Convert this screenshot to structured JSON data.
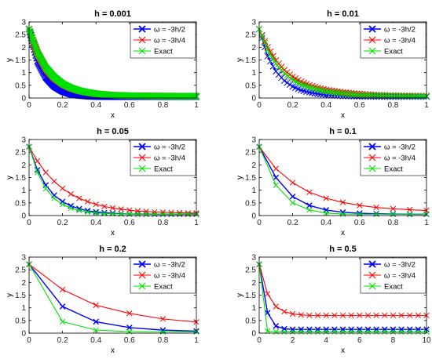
{
  "chart_data": [
    {
      "type": "line",
      "title": "h = 0.001",
      "xlabel": "x",
      "ylabel": "y",
      "xlim": [
        0,
        1
      ],
      "ylim": [
        0,
        3
      ],
      "xticks": [
        0,
        0.2,
        0.4,
        0.6,
        0.8,
        1
      ],
      "xtick_labels": [
        "0",
        "0.2",
        "0.4",
        "0.6",
        "0.8",
        "1"
      ],
      "yticks": [
        0,
        0.5,
        1,
        1.5,
        2,
        2.5,
        3
      ],
      "ytick_labels": [
        "0",
        "0.5",
        "1",
        "1.5",
        "2",
        "2.5",
        "3"
      ],
      "legend_position": "top-right",
      "dense": true,
      "series": [
        {
          "name": "ω = -3h/2",
          "color": "#0000ff",
          "marker": "x",
          "x": [
            0,
            0.05,
            0.1,
            0.15,
            0.2,
            0.25,
            0.3,
            0.35,
            0.4,
            0.5,
            0.6,
            0.7,
            0.8,
            0.9,
            1
          ],
          "y": [
            2.718,
            1.45,
            0.82,
            0.46,
            0.26,
            0.15,
            0.1,
            0.07,
            0.055,
            0.05,
            0.05,
            0.05,
            0.05,
            0.05,
            0.05
          ]
        },
        {
          "name": "ω = -3h/4",
          "color": "#ff0000",
          "marker": "x",
          "x": [
            0,
            0.05,
            0.1,
            0.15,
            0.2,
            0.25,
            0.3,
            0.35,
            0.4,
            0.5,
            0.6,
            0.7,
            0.8,
            0.9,
            1
          ],
          "y": [
            2.718,
            1.75,
            1.15,
            0.78,
            0.54,
            0.38,
            0.28,
            0.21,
            0.16,
            0.11,
            0.09,
            0.08,
            0.075,
            0.07,
            0.07
          ]
        },
        {
          "name": "Exact",
          "color": "#00e000",
          "marker": "x",
          "x": [
            0,
            0.05,
            0.1,
            0.15,
            0.2,
            0.25,
            0.3,
            0.35,
            0.4,
            0.5,
            0.6,
            0.7,
            0.8,
            0.9,
            1
          ],
          "y": [
            2.718,
            1.8,
            1.2,
            0.82,
            0.56,
            0.4,
            0.29,
            0.22,
            0.17,
            0.11,
            0.09,
            0.08,
            0.075,
            0.07,
            0.07
          ]
        }
      ]
    },
    {
      "type": "line",
      "title": "h = 0.01",
      "xlabel": "x",
      "ylabel": "y",
      "xlim": [
        0,
        1
      ],
      "ylim": [
        0,
        3
      ],
      "xticks": [
        0,
        0.2,
        0.4,
        0.6,
        0.8,
        1
      ],
      "xtick_labels": [
        "0",
        "0.2",
        "0.4",
        "0.6",
        "0.8",
        "1"
      ],
      "yticks": [
        0,
        0.5,
        1,
        1.5,
        2,
        2.5,
        3
      ],
      "ytick_labels": [
        "0",
        "0.5",
        "1",
        "1.5",
        "2",
        "2.5",
        "3"
      ],
      "legend_position": "top-right",
      "dense": true,
      "series": [
        {
          "name": "ω = -3h/2",
          "color": "#0000ff",
          "marker": "x",
          "x": [
            0,
            0.05,
            0.1,
            0.15,
            0.2,
            0.25,
            0.3,
            0.35,
            0.4,
            0.5,
            0.6,
            0.7,
            0.8,
            0.9,
            1
          ],
          "y": [
            2.718,
            1.65,
            1.05,
            0.68,
            0.45,
            0.31,
            0.22,
            0.16,
            0.12,
            0.08,
            0.06,
            0.055,
            0.05,
            0.05,
            0.05
          ]
        },
        {
          "name": "ω = -3h/4",
          "color": "#ff0000",
          "marker": "x",
          "x": [
            0,
            0.05,
            0.1,
            0.15,
            0.2,
            0.25,
            0.3,
            0.35,
            0.4,
            0.5,
            0.6,
            0.7,
            0.8,
            0.9,
            1
          ],
          "y": [
            2.718,
            2.0,
            1.48,
            1.1,
            0.83,
            0.64,
            0.5,
            0.4,
            0.32,
            0.22,
            0.16,
            0.12,
            0.1,
            0.09,
            0.08
          ]
        },
        {
          "name": "Exact",
          "color": "#00e000",
          "marker": "x",
          "x": [
            0,
            0.05,
            0.1,
            0.15,
            0.2,
            0.25,
            0.3,
            0.35,
            0.4,
            0.5,
            0.6,
            0.7,
            0.8,
            0.9,
            1
          ],
          "y": [
            2.718,
            1.9,
            1.35,
            0.98,
            0.72,
            0.54,
            0.42,
            0.33,
            0.26,
            0.17,
            0.12,
            0.1,
            0.085,
            0.075,
            0.07
          ]
        }
      ]
    },
    {
      "type": "line",
      "title": "h = 0.05",
      "xlabel": "x",
      "ylabel": "y",
      "xlim": [
        0,
        1
      ],
      "ylim": [
        0,
        3
      ],
      "xticks": [
        0,
        0.2,
        0.4,
        0.6,
        0.8,
        1
      ],
      "xtick_labels": [
        "0",
        "0.2",
        "0.4",
        "0.6",
        "0.8",
        "1"
      ],
      "yticks": [
        0,
        0.5,
        1,
        1.5,
        2,
        2.5,
        3
      ],
      "ytick_labels": [
        "0",
        "0.5",
        "1",
        "1.5",
        "2",
        "2.5",
        "3"
      ],
      "legend_position": "top-right",
      "dense": false,
      "series": [
        {
          "name": "ω = -3h/2",
          "color": "#0000ff",
          "marker": "x",
          "x": [
            0,
            0.05,
            0.1,
            0.15,
            0.2,
            0.25,
            0.3,
            0.35,
            0.4,
            0.45,
            0.5,
            0.55,
            0.6,
            0.65,
            0.7,
            0.75,
            0.8,
            0.85,
            0.9,
            0.95,
            1
          ],
          "y": [
            2.718,
            1.8,
            1.2,
            0.8,
            0.55,
            0.38,
            0.27,
            0.19,
            0.14,
            0.11,
            0.09,
            0.07,
            0.06,
            0.06,
            0.055,
            0.05,
            0.05,
            0.05,
            0.05,
            0.05,
            0.05
          ]
        },
        {
          "name": "ω = -3h/4",
          "color": "#ff0000",
          "marker": "x",
          "x": [
            0,
            0.05,
            0.1,
            0.15,
            0.2,
            0.25,
            0.3,
            0.35,
            0.4,
            0.45,
            0.5,
            0.55,
            0.6,
            0.65,
            0.7,
            0.75,
            0.8,
            0.85,
            0.9,
            0.95,
            1
          ],
          "y": [
            2.718,
            2.15,
            1.7,
            1.35,
            1.07,
            0.85,
            0.68,
            0.55,
            0.44,
            0.36,
            0.3,
            0.25,
            0.21,
            0.18,
            0.16,
            0.14,
            0.13,
            0.12,
            0.11,
            0.1,
            0.1
          ]
        },
        {
          "name": "Exact",
          "color": "#00e000",
          "marker": "x",
          "x": [
            0,
            0.05,
            0.1,
            0.15,
            0.2,
            0.25,
            0.3,
            0.35,
            0.4,
            0.45,
            0.5,
            0.55,
            0.6,
            0.65,
            0.7,
            0.75,
            0.8,
            0.85,
            0.9,
            0.95,
            1
          ],
          "y": [
            2.718,
            1.7,
            1.06,
            0.68,
            0.44,
            0.29,
            0.2,
            0.14,
            0.1,
            0.08,
            0.07,
            0.06,
            0.06,
            0.055,
            0.05,
            0.05,
            0.05,
            0.05,
            0.05,
            0.05,
            0.05
          ]
        }
      ]
    },
    {
      "type": "line",
      "title": "h = 0.1",
      "xlabel": "x",
      "ylabel": "y",
      "xlim": [
        0,
        1
      ],
      "ylim": [
        0,
        3
      ],
      "xticks": [
        0,
        0.2,
        0.4,
        0.6,
        0.8,
        1
      ],
      "xtick_labels": [
        "0",
        "0.2",
        "0.4",
        "0.6",
        "0.8",
        "1"
      ],
      "yticks": [
        0,
        0.5,
        1,
        1.5,
        2,
        2.5,
        3
      ],
      "ytick_labels": [
        "0",
        "0.5",
        "1",
        "1.5",
        "2",
        "2.5",
        "3"
      ],
      "legend_position": "top-right",
      "dense": false,
      "series": [
        {
          "name": "ω = -3h/2",
          "color": "#0000ff",
          "marker": "x",
          "x": [
            0,
            0.1,
            0.2,
            0.3,
            0.4,
            0.5,
            0.6,
            0.7,
            0.8,
            0.9,
            1
          ],
          "y": [
            2.718,
            1.5,
            0.75,
            0.4,
            0.22,
            0.13,
            0.09,
            0.07,
            0.06,
            0.05,
            0.05
          ]
        },
        {
          "name": "ω = -3h/4",
          "color": "#ff0000",
          "marker": "x",
          "x": [
            0,
            0.1,
            0.2,
            0.3,
            0.4,
            0.5,
            0.6,
            0.7,
            0.8,
            0.9,
            1
          ],
          "y": [
            2.718,
            1.85,
            1.3,
            0.92,
            0.68,
            0.52,
            0.4,
            0.32,
            0.27,
            0.23,
            0.2
          ]
        },
        {
          "name": "Exact",
          "color": "#00e000",
          "marker": "x",
          "x": [
            0,
            0.1,
            0.2,
            0.3,
            0.4,
            0.5,
            0.6,
            0.7,
            0.8,
            0.9,
            1
          ],
          "y": [
            2.718,
            1.2,
            0.5,
            0.22,
            0.1,
            0.06,
            0.05,
            0.05,
            0.05,
            0.05,
            0.05
          ]
        }
      ]
    },
    {
      "type": "line",
      "title": "h = 0.2",
      "xlabel": "x",
      "ylabel": "y",
      "xlim": [
        0,
        1
      ],
      "ylim": [
        0,
        3
      ],
      "xticks": [
        0,
        0.2,
        0.4,
        0.6,
        0.8,
        1
      ],
      "xtick_labels": [
        "0",
        "0.2",
        "0.4",
        "0.6",
        "0.8",
        "1"
      ],
      "yticks": [
        0,
        0.5,
        1,
        1.5,
        2,
        2.5,
        3
      ],
      "ytick_labels": [
        "0",
        "0.5",
        "1",
        "1.5",
        "2",
        "2.5",
        "3"
      ],
      "legend_position": "top-right",
      "dense": false,
      "series": [
        {
          "name": "ω = -3h/2",
          "color": "#0000ff",
          "marker": "x",
          "x": [
            0,
            0.2,
            0.4,
            0.6,
            0.8,
            1
          ],
          "y": [
            2.718,
            1.05,
            0.45,
            0.22,
            0.12,
            0.08
          ]
        },
        {
          "name": "ω = -3h/4",
          "color": "#ff0000",
          "marker": "x",
          "x": [
            0,
            0.2,
            0.4,
            0.6,
            0.8,
            1
          ],
          "y": [
            2.718,
            1.72,
            1.1,
            0.78,
            0.56,
            0.44
          ]
        },
        {
          "name": "Exact",
          "color": "#00e000",
          "marker": "x",
          "x": [
            0,
            0.2,
            0.4,
            0.6,
            0.8,
            1
          ],
          "y": [
            2.718,
            0.45,
            0.12,
            0.06,
            0.05,
            0.05
          ]
        }
      ]
    },
    {
      "type": "line",
      "title": "h = 0.5",
      "xlabel": "x",
      "ylabel": "y",
      "xlim": [
        0,
        10
      ],
      "ylim": [
        0,
        3
      ],
      "xticks": [
        0,
        2,
        4,
        6,
        8,
        10
      ],
      "xtick_labels": [
        "0",
        "2",
        "4",
        "6",
        "8",
        "10"
      ],
      "yticks": [
        0,
        0.5,
        1,
        1.5,
        2,
        2.5,
        3
      ],
      "ytick_labels": [
        "0",
        "0.5",
        "1",
        "1.5",
        "2",
        "2.5",
        "3"
      ],
      "legend_position": "top-right",
      "dense": false,
      "series": [
        {
          "name": "ω = -3h/2",
          "color": "#0000ff",
          "marker": "x",
          "x": [
            0,
            0.5,
            1,
            1.5,
            2,
            2.5,
            3,
            3.5,
            4,
            4.5,
            5,
            5.5,
            6,
            6.5,
            7,
            7.5,
            8,
            8.5,
            9,
            9.5,
            10
          ],
          "y": [
            2.718,
            0.8,
            0.28,
            0.17,
            0.15,
            0.15,
            0.15,
            0.15,
            0.15,
            0.15,
            0.15,
            0.15,
            0.15,
            0.15,
            0.15,
            0.15,
            0.15,
            0.15,
            0.15,
            0.15,
            0.15
          ]
        },
        {
          "name": "ω = -3h/4",
          "color": "#ff0000",
          "marker": "x",
          "x": [
            0,
            0.5,
            1,
            1.5,
            2,
            2.5,
            3,
            3.5,
            4,
            4.5,
            5,
            5.5,
            6,
            6.5,
            7,
            7.5,
            8,
            8.5,
            9,
            9.5,
            10
          ],
          "y": [
            2.718,
            1.55,
            1.05,
            0.85,
            0.76,
            0.72,
            0.7,
            0.7,
            0.7,
            0.7,
            0.7,
            0.7,
            0.7,
            0.7,
            0.7,
            0.7,
            0.7,
            0.7,
            0.7,
            0.7,
            0.7
          ]
        },
        {
          "name": "Exact",
          "color": "#00e000",
          "marker": "x",
          "x": [
            0,
            0.5,
            1,
            1.5,
            2,
            2.5,
            3,
            3.5,
            4,
            4.5,
            5,
            5.5,
            6,
            6.5,
            7,
            7.5,
            8,
            8.5,
            9,
            9.5,
            10
          ],
          "y": [
            2.718,
            0.08,
            0.05,
            0.05,
            0.05,
            0.05,
            0.05,
            0.05,
            0.05,
            0.05,
            0.05,
            0.05,
            0.05,
            0.05,
            0.05,
            0.05,
            0.05,
            0.05,
            0.05,
            0.05,
            0.05
          ]
        }
      ]
    }
  ]
}
